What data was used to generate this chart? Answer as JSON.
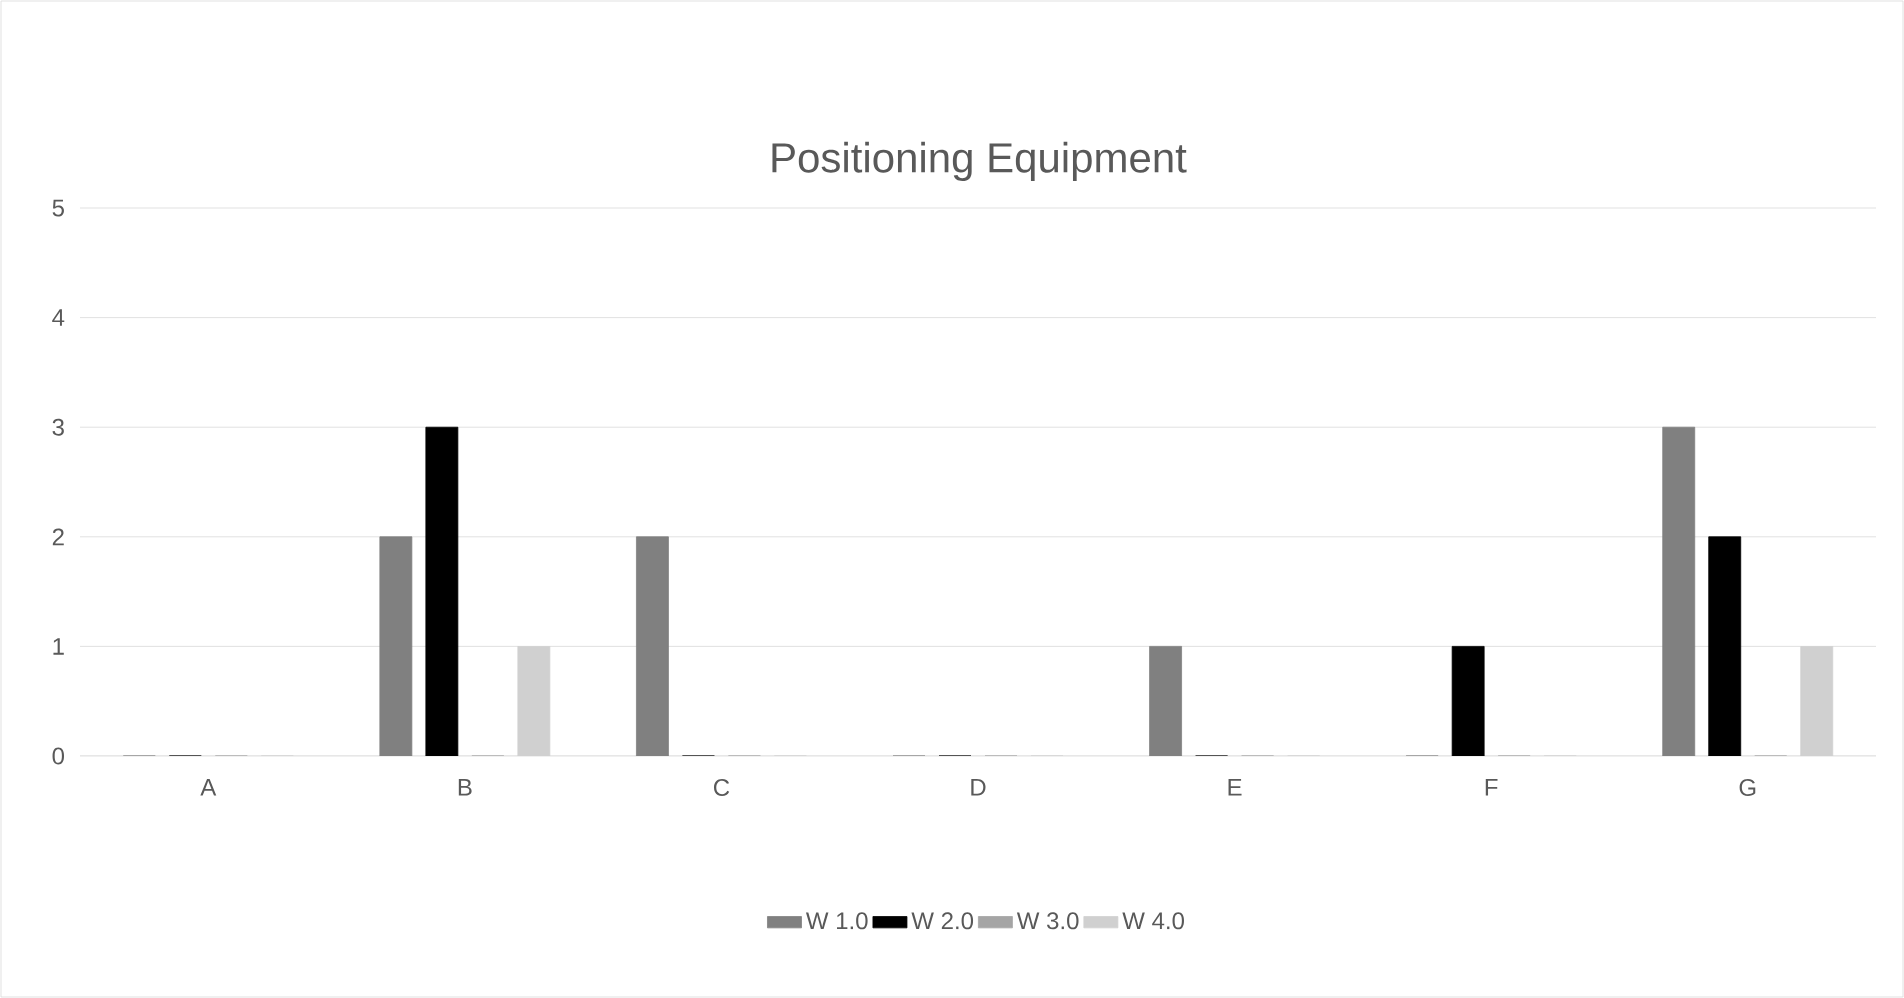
{
  "chart_data": {
    "type": "bar",
    "title": "Positioning Equipment",
    "categories": [
      "A",
      "B",
      "C",
      "D",
      "E",
      "F",
      "G"
    ],
    "series": [
      {
        "name": "W 1.0",
        "color": "#808080",
        "values": [
          0,
          2,
          2,
          0,
          1,
          0,
          3
        ]
      },
      {
        "name": "W 2.0",
        "color": "#000000",
        "values": [
          0,
          3,
          0,
          0,
          0,
          1,
          2
        ]
      },
      {
        "name": "W 3.0",
        "color": "#a5a5a5",
        "values": [
          0,
          0,
          0,
          0,
          0,
          0,
          0
        ]
      },
      {
        "name": "W 4.0",
        "color": "#d0d0d0",
        "values": [
          0,
          1,
          0,
          0,
          0,
          0,
          1
        ]
      }
    ],
    "ylim": [
      0,
      5
    ],
    "yticks": [
      0,
      1,
      2,
      3,
      4,
      5
    ],
    "grid": "y",
    "legend": "bottom"
  }
}
